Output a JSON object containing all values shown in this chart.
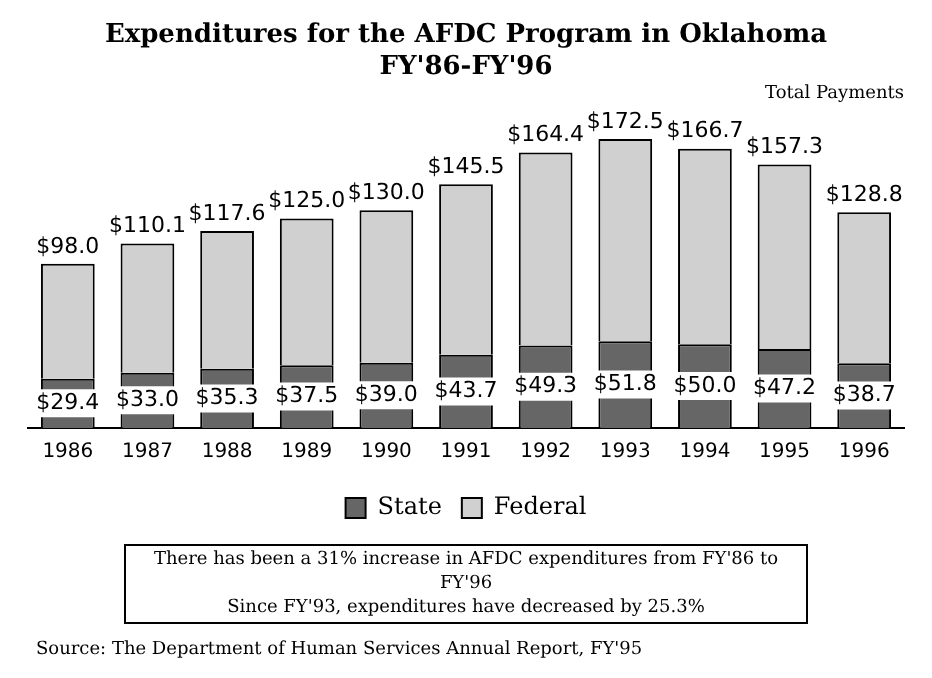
{
  "chart_data": {
    "type": "bar",
    "title": "Expenditures for the AFDC Program in Oklahoma",
    "subtitle": "FY'86-FY'96",
    "categories": [
      "1986",
      "1987",
      "1988",
      "1989",
      "1990",
      "1991",
      "1992",
      "1993",
      "1994",
      "1995",
      "1996"
    ],
    "stacked": true,
    "series": [
      {
        "name": "State",
        "color": "#666666",
        "values": [
          29.4,
          33.0,
          35.3,
          37.5,
          39.0,
          43.7,
          49.3,
          51.8,
          50.0,
          47.2,
          38.7
        ],
        "value_labels": [
          "$29.4",
          "$33.0",
          "$35.3",
          "$37.5",
          "$39.0",
          "$43.7",
          "$49.3",
          "$51.8",
          "$50.0",
          "$47.2",
          "$38.7"
        ]
      },
      {
        "name": "Federal",
        "color": "#d0d0d0",
        "values": [
          68.6,
          77.1,
          82.3,
          87.5,
          91.0,
          101.8,
          115.1,
          120.7,
          116.7,
          110.1,
          90.1
        ]
      }
    ],
    "totals": [
      "$98.0",
      "$110.1",
      "$117.6",
      "$125.0",
      "$130.0",
      "$145.5",
      "$164.4",
      "$172.5",
      "$166.7",
      "$157.3",
      "$128.8"
    ],
    "legend": "bottom",
    "grid": false,
    "annotations": [
      "Total Payments",
      "There has been a 31% increase in AFDC expenditures from FY'86 to FY'96",
      "Since FY'93, expenditures have decreased by 25.3%",
      "Source:  The Department of Human Services Annual Report, FY'95"
    ]
  }
}
